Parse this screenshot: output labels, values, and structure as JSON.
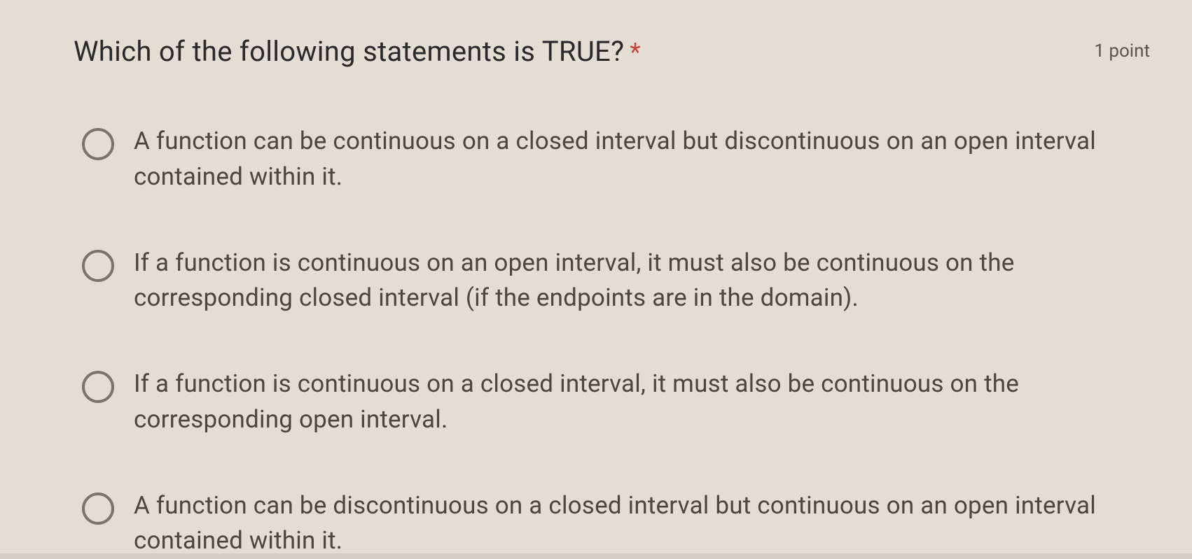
{
  "question": {
    "text": "Which of the following statements is TRUE?",
    "required": true,
    "points_label": "1 point",
    "asterisk_color": "#c5443a"
  },
  "options": [
    {
      "text": "A function can be continuous on a closed interval but discontinuous on an open interval contained within it."
    },
    {
      "text": "If a function is continuous on an open interval, it must also be continuous on the corresponding closed interval (if the endpoints are in the domain)."
    },
    {
      "text": "If a function is continuous on a closed interval, it must also be continuous on the corresponding open interval."
    },
    {
      "text": "A function can be discontinuous on a closed interval but continuous on an open interval contained within it."
    }
  ],
  "styling": {
    "background_color": "#e3ddd4",
    "question_fontsize": 40,
    "question_color": "#2a2a2a",
    "option_fontsize": 35,
    "option_color": "#4a4640",
    "radio_border_color": "#7a746c",
    "radio_size": 46,
    "points_color": "#5a5550"
  }
}
